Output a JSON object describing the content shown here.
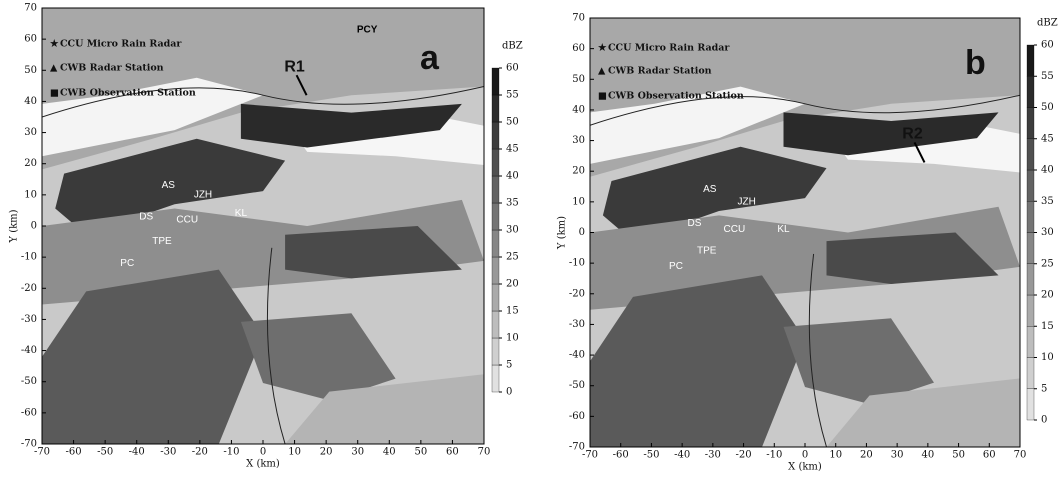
{
  "chart_data": [
    {
      "type": "map",
      "panel": "a",
      "xlabel": "X (km)",
      "ylabel": "Y (km)",
      "xlim": [
        -70,
        70
      ],
      "ylim": [
        -70,
        70
      ],
      "xticks": [
        -70,
        -60,
        -50,
        -40,
        -30,
        -20,
        -10,
        0,
        10,
        20,
        30,
        40,
        50,
        60,
        70
      ],
      "yticks": [
        -70,
        -60,
        -50,
        -40,
        -30,
        -20,
        -10,
        0,
        10,
        20,
        30,
        40,
        50,
        60,
        70
      ],
      "colorbar_label": "dBZ",
      "colorbar_ticks": [
        0,
        5,
        10,
        15,
        20,
        25,
        30,
        35,
        40,
        45,
        50,
        55,
        60
      ],
      "legend": [
        "CCU Micro Rain Radar",
        "CWB Radar Station",
        "CWB Observation Station"
      ],
      "annotations": [
        "PCY",
        "R1",
        "AS",
        "JZH",
        "DS",
        "CCU",
        "KL",
        "TPE",
        "PC"
      ]
    },
    {
      "type": "map",
      "panel": "b",
      "xlabel": "X (km)",
      "ylabel": "Y (km)",
      "xlim": [
        -70,
        70
      ],
      "ylim": [
        -70,
        70
      ],
      "xticks": [
        -70,
        -60,
        -50,
        -40,
        -30,
        -20,
        -10,
        0,
        10,
        20,
        30,
        40,
        50,
        60,
        70
      ],
      "yticks": [
        -70,
        -60,
        -50,
        -40,
        -30,
        -20,
        -10,
        0,
        10,
        20,
        30,
        40,
        50,
        60,
        70
      ],
      "colorbar_label": "dBZ",
      "colorbar_ticks": [
        0,
        5,
        10,
        15,
        20,
        25,
        30,
        35,
        40,
        45,
        50,
        55,
        60
      ],
      "legend": [
        "CCU Micro Rain Radar",
        "CWB Radar Station",
        "CWB Observation Station"
      ],
      "annotations": [
        "R2",
        "AS",
        "JZH",
        "DS",
        "CCU",
        "KL",
        "TPE",
        "PC"
      ]
    }
  ]
}
